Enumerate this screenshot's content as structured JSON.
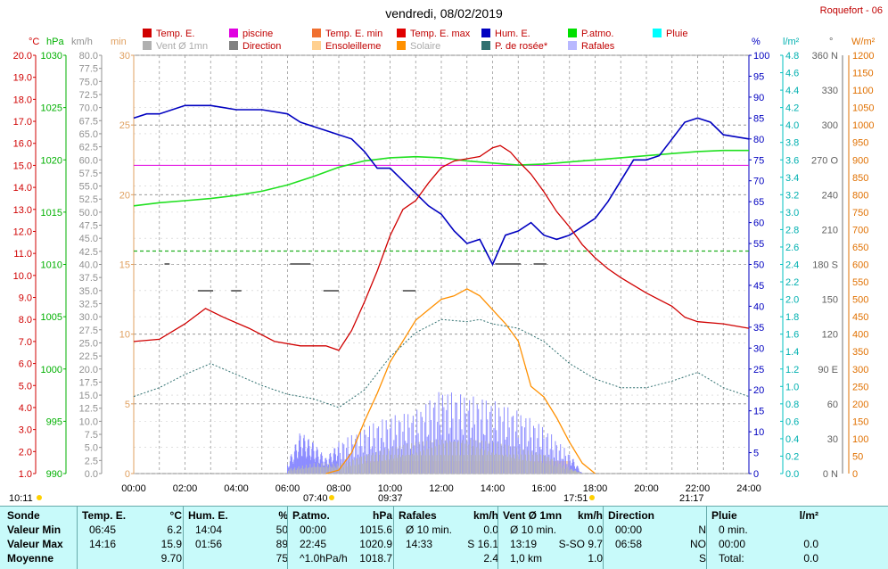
{
  "header": {
    "title": "vendredi, 08/02/2019",
    "station": "Roquefort - 06"
  },
  "legend": [
    {
      "label": "Temp. E.",
      "color": "#d00000"
    },
    {
      "label": "piscine",
      "color": "#e000e0"
    },
    {
      "label": "Temp. E. min",
      "color": "#f07030"
    },
    {
      "label": "Temp. E. max",
      "color": "#e00000"
    },
    {
      "label": "Hum. E.",
      "color": "#0000c0"
    },
    {
      "label": "P.atmo.",
      "color": "#00e000"
    },
    {
      "label": "Pluie",
      "color": "#00ffff"
    },
    {
      "label": "Vent Ø 1mn",
      "color": "#b0b0b0"
    },
    {
      "label": "Direction",
      "color": "#808080"
    },
    {
      "label": "Ensoleilleme",
      "color": "#ffd090"
    },
    {
      "label": "Solaire",
      "color": "#ff9000"
    },
    {
      "label": "P. de rosée*",
      "color": "#307070"
    },
    {
      "label": "Rafales",
      "color": "#b8b8ff"
    }
  ],
  "unit_labels": {
    "temp": "°C",
    "press": "hPa",
    "wind": "km/h",
    "min": "min",
    "hum": "%",
    "rain": "l/m²",
    "dir": "°",
    "solar": "W/m²"
  },
  "time_markers": {
    "left": "10:11",
    "sunrise": "07:40",
    "t0937": "09:37",
    "sunset": "17:51",
    "t2117": "21:17"
  },
  "chart_data": {
    "type": "line",
    "x_ticks": [
      "00:00",
      "02:00",
      "04:00",
      "06:00",
      "08:00",
      "10:00",
      "12:00",
      "14:00",
      "16:00",
      "18:00",
      "20:00",
      "22:00",
      "24:00"
    ],
    "axes": {
      "temp_c": {
        "min": 1.0,
        "max": 20.0,
        "step": 1.0
      },
      "pressure_hpa": {
        "min": 990,
        "max": 1030,
        "step": 5
      },
      "wind_kmh": {
        "min": 0,
        "max": 80,
        "step": 2.5
      },
      "minutes": {
        "min": 0,
        "max": 30,
        "step": 5
      },
      "humidity_pct": {
        "min": 0,
        "max": 100,
        "step": 5
      },
      "rain_lm2": {
        "min": 0.0,
        "max": 4.8,
        "step": 0.2
      },
      "direction_deg": {
        "min": 0,
        "max": 360,
        "step": 30
      },
      "solar_wm2": {
        "min": 0,
        "max": 1200,
        "step": 50
      }
    },
    "direction_labels": {
      "0": "N",
      "90": "E",
      "180": "S",
      "270": "O",
      "360": "N"
    },
    "series": [
      {
        "name": "Temp. E.",
        "unit": "°C",
        "points": [
          [
            0,
            7.0
          ],
          [
            1,
            7.1
          ],
          [
            2,
            7.8
          ],
          [
            2.8,
            8.5
          ],
          [
            3.5,
            8.1
          ],
          [
            4.5,
            7.6
          ],
          [
            5.5,
            7.0
          ],
          [
            6.5,
            6.8
          ],
          [
            7.5,
            6.8
          ],
          [
            8,
            6.6
          ],
          [
            8.5,
            7.5
          ],
          [
            9,
            8.8
          ],
          [
            9.5,
            10.2
          ],
          [
            10,
            11.8
          ],
          [
            10.5,
            13.0
          ],
          [
            11,
            13.4
          ],
          [
            11.5,
            14.2
          ],
          [
            12,
            14.9
          ],
          [
            12.5,
            15.2
          ],
          [
            13,
            15.3
          ],
          [
            13.5,
            15.4
          ],
          [
            14,
            15.8
          ],
          [
            14.3,
            15.9
          ],
          [
            14.7,
            15.6
          ],
          [
            15,
            15.2
          ],
          [
            15.5,
            14.6
          ],
          [
            16,
            13.8
          ],
          [
            16.5,
            12.9
          ],
          [
            17,
            12.2
          ],
          [
            17.5,
            11.4
          ],
          [
            18,
            10.8
          ],
          [
            18.5,
            10.3
          ],
          [
            19,
            9.9
          ],
          [
            20,
            9.2
          ],
          [
            21,
            8.6
          ],
          [
            21.5,
            8.1
          ],
          [
            22,
            7.9
          ],
          [
            23,
            7.8
          ],
          [
            24,
            7.6
          ]
        ]
      },
      {
        "name": "piscine",
        "unit": "°C",
        "points": [
          [
            0,
            15.0
          ],
          [
            24,
            15.0
          ]
        ]
      },
      {
        "name": "Hum. E.",
        "unit": "%",
        "points": [
          [
            0,
            85
          ],
          [
            0.5,
            86
          ],
          [
            1,
            86
          ],
          [
            2,
            88
          ],
          [
            3,
            88
          ],
          [
            4,
            87
          ],
          [
            5,
            87
          ],
          [
            6,
            86
          ],
          [
            6.5,
            84
          ],
          [
            7,
            83
          ],
          [
            7.5,
            82
          ],
          [
            8,
            81
          ],
          [
            8.5,
            80
          ],
          [
            9,
            77
          ],
          [
            9.5,
            73
          ],
          [
            10,
            73
          ],
          [
            10.5,
            70
          ],
          [
            11,
            67
          ],
          [
            11.5,
            64
          ],
          [
            12,
            62
          ],
          [
            12.5,
            58
          ],
          [
            13,
            55
          ],
          [
            13.5,
            56
          ],
          [
            14,
            50
          ],
          [
            14.5,
            57
          ],
          [
            15,
            58
          ],
          [
            15.5,
            60
          ],
          [
            16,
            57
          ],
          [
            16.5,
            56
          ],
          [
            17,
            57
          ],
          [
            17.5,
            59
          ],
          [
            18,
            61
          ],
          [
            18.5,
            65
          ],
          [
            19,
            70
          ],
          [
            19.5,
            75
          ],
          [
            20,
            75
          ],
          [
            20.5,
            76
          ],
          [
            21,
            80
          ],
          [
            21.5,
            84
          ],
          [
            22,
            85
          ],
          [
            22.5,
            84
          ],
          [
            23,
            81
          ],
          [
            24,
            80
          ]
        ]
      },
      {
        "name": "P.atmo.",
        "unit": "hPa",
        "points": [
          [
            0,
            1015.6
          ],
          [
            1,
            1015.9
          ],
          [
            2,
            1016.1
          ],
          [
            3,
            1016.3
          ],
          [
            4,
            1016.6
          ],
          [
            5,
            1017.0
          ],
          [
            6,
            1017.6
          ],
          [
            7,
            1018.4
          ],
          [
            8,
            1019.3
          ],
          [
            9,
            1019.9
          ],
          [
            10,
            1020.2
          ],
          [
            11,
            1020.3
          ],
          [
            12,
            1020.2
          ],
          [
            13,
            1019.9
          ],
          [
            14,
            1019.7
          ],
          [
            15,
            1019.5
          ],
          [
            16,
            1019.6
          ],
          [
            17,
            1019.8
          ],
          [
            18,
            1020.0
          ],
          [
            19,
            1020.2
          ],
          [
            20,
            1020.4
          ],
          [
            21,
            1020.6
          ],
          [
            22,
            1020.8
          ],
          [
            23,
            1020.9
          ],
          [
            24,
            1020.9
          ]
        ]
      },
      {
        "name": "P. de rosée*",
        "unit": "°C",
        "points": [
          [
            0,
            4.5
          ],
          [
            1,
            4.9
          ],
          [
            2,
            5.5
          ],
          [
            3,
            6.0
          ],
          [
            4,
            5.5
          ],
          [
            5,
            5.0
          ],
          [
            6,
            4.6
          ],
          [
            7,
            4.4
          ],
          [
            8,
            4.0
          ],
          [
            9,
            4.8
          ],
          [
            10,
            6.3
          ],
          [
            11,
            7.4
          ],
          [
            12,
            8.0
          ],
          [
            13,
            7.9
          ],
          [
            13.5,
            8.0
          ],
          [
            14,
            7.8
          ],
          [
            15,
            7.6
          ],
          [
            16,
            7.0
          ],
          [
            17,
            6.0
          ],
          [
            18,
            5.3
          ],
          [
            19,
            4.9
          ],
          [
            20,
            4.9
          ],
          [
            21,
            5.2
          ],
          [
            22,
            5.6
          ],
          [
            23,
            4.9
          ],
          [
            24,
            4.5
          ]
        ]
      },
      {
        "name": "Solaire",
        "unit": "W/m²",
        "points": [
          [
            7.5,
            0
          ],
          [
            8,
            10
          ],
          [
            8.5,
            60
          ],
          [
            9,
            150
          ],
          [
            9.5,
            230
          ],
          [
            10,
            320
          ],
          [
            10.5,
            380
          ],
          [
            11,
            440
          ],
          [
            11.5,
            470
          ],
          [
            12,
            500
          ],
          [
            12.5,
            510
          ],
          [
            13,
            530
          ],
          [
            13.5,
            510
          ],
          [
            14,
            470
          ],
          [
            14.5,
            430
          ],
          [
            15,
            380
          ],
          [
            15.5,
            250
          ],
          [
            16,
            220
          ],
          [
            16.5,
            160
          ],
          [
            17,
            90
          ],
          [
            17.5,
            30
          ],
          [
            18,
            0
          ]
        ]
      },
      {
        "name": "Rafales",
        "unit": "km/h",
        "points": [
          [
            6,
            2
          ],
          [
            6.5,
            8
          ],
          [
            7,
            6
          ],
          [
            7.5,
            3
          ],
          [
            8,
            6
          ],
          [
            9,
            9
          ],
          [
            10,
            11
          ],
          [
            11,
            12
          ],
          [
            12,
            16
          ],
          [
            13,
            15
          ],
          [
            14,
            14
          ],
          [
            15,
            12
          ],
          [
            16,
            9
          ],
          [
            17,
            4
          ],
          [
            17.5,
            0
          ]
        ]
      },
      {
        "name": "Vent Ø 1mn",
        "unit": "km/h",
        "points": [
          [
            6,
            1
          ],
          [
            7,
            2
          ],
          [
            8,
            2
          ],
          [
            9,
            4
          ],
          [
            10,
            5
          ],
          [
            11,
            6
          ],
          [
            12,
            7
          ],
          [
            13,
            7
          ],
          [
            14,
            6
          ],
          [
            15,
            5
          ],
          [
            16,
            4
          ],
          [
            17,
            1
          ],
          [
            17.5,
            0
          ]
        ]
      }
    ]
  },
  "summary": {
    "row_labels": [
      "Sonde",
      "Valeur Min",
      "Valeur Max",
      "Moyenne"
    ],
    "columns": [
      {
        "title": "Temp. E.",
        "unit": "°C",
        "rows": [
          [
            "06:45",
            "6.2"
          ],
          [
            "14:16",
            "15.9"
          ],
          [
            "",
            "9.70"
          ]
        ]
      },
      {
        "title": "Hum. E.",
        "unit": "%",
        "rows": [
          [
            "14:04",
            "50"
          ],
          [
            "01:56",
            "89"
          ],
          [
            "",
            "75"
          ]
        ]
      },
      {
        "title": "P.atmo.",
        "unit": "hPa",
        "rows": [
          [
            "00:00",
            "1015.6"
          ],
          [
            "22:45",
            "1020.9"
          ],
          [
            "^1.0hPa/h",
            "1018.7"
          ]
        ]
      },
      {
        "title": "Rafales",
        "unit": "km/h",
        "rows": [
          [
            "Ø 10 min.",
            "0.0"
          ],
          [
            "14:33",
            "S 16.1"
          ],
          [
            "",
            "2.4"
          ]
        ]
      },
      {
        "title": "Vent Ø 1mn",
        "unit": "km/h",
        "rows": [
          [
            "Ø 10 min.",
            "0.0"
          ],
          [
            "13:19",
            "S-SO 9.7"
          ],
          [
            "1,0 km",
            "1.0"
          ]
        ]
      },
      {
        "title": "Direction",
        "unit": "",
        "rows": [
          [
            "00:00",
            "N"
          ],
          [
            "06:58",
            "NO"
          ],
          [
            "",
            "S"
          ]
        ]
      },
      {
        "title": "Pluie",
        "unit": "l/m²",
        "rows": [
          [
            "0 min.",
            ""
          ],
          [
            "00:00",
            "0.0"
          ],
          [
            "Total:",
            "0.0"
          ]
        ]
      }
    ]
  }
}
